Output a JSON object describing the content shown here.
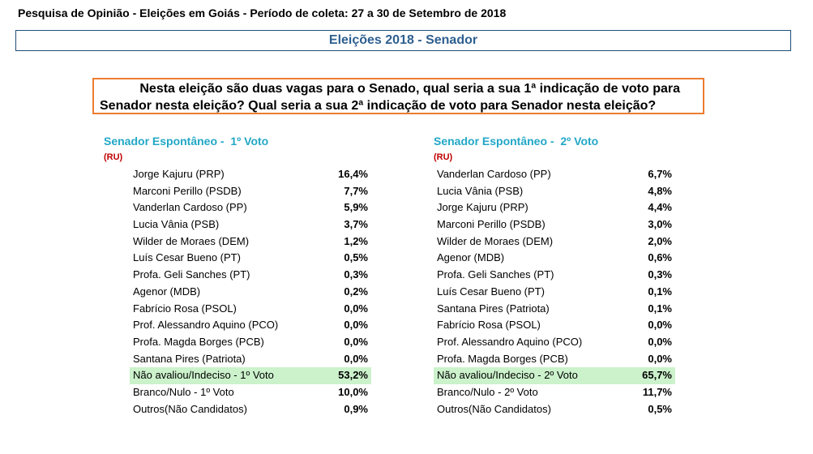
{
  "header": {
    "title": "Pesquisa de Opinião - Eleições em Goiás - Período de coleta: 27 a 30 de Setembro de 2018"
  },
  "banner": {
    "title": "Eleições 2018 - Senador"
  },
  "question": {
    "line1": "Nesta eleição são duas vagas para o Senado, qual seria a sua 1ª indicação de voto para",
    "line2": "Senador nesta eleição? Qual seria a sua 2ª indicação de voto para Senador nesta eleição?"
  },
  "first_vote": {
    "title": "Senador Espontâneo -  1º Voto",
    "note": "(RU)",
    "rows": [
      {
        "name": "Jorge Kajuru (PRP)",
        "value": "16,4%"
      },
      {
        "name": "Marconi Perillo (PSDB)",
        "value": "7,7%"
      },
      {
        "name": "Vanderlan Cardoso (PP)",
        "value": "5,9%"
      },
      {
        "name": "Lucia Vânia (PSB)",
        "value": "3,7%"
      },
      {
        "name": "Wilder de Moraes (DEM)",
        "value": "1,2%"
      },
      {
        "name": "Luís Cesar Bueno (PT)",
        "value": "0,5%"
      },
      {
        "name": "Profa. Geli Sanches (PT)",
        "value": "0,3%"
      },
      {
        "name": "Agenor (MDB)",
        "value": "0,2%"
      },
      {
        "name": "Fabrício Rosa (PSOL)",
        "value": "0,0%"
      },
      {
        "name": "Prof. Alessandro Aquino (PCO)",
        "value": "0,0%"
      },
      {
        "name": "Profa. Magda Borges (PCB)",
        "value": "0,0%"
      },
      {
        "name": "Santana Pires (Patriota)",
        "value": "0,0%"
      },
      {
        "name": "Não avaliou/Indeciso - 1º Voto",
        "value": "53,2%"
      },
      {
        "name": "Branco/Nulo - 1º Voto",
        "value": "10,0%"
      },
      {
        "name": "Outros(Não Candidatos)",
        "value": "0,9%"
      }
    ]
  },
  "second_vote": {
    "title": "Senador Espontâneo -  2º Voto",
    "note": "(RU)",
    "rows": [
      {
        "name": "Vanderlan Cardoso (PP)",
        "value": "6,7%"
      },
      {
        "name": "Lucia Vânia (PSB)",
        "value": "4,8%"
      },
      {
        "name": "Jorge Kajuru (PRP)",
        "value": "4,4%"
      },
      {
        "name": "Marconi Perillo (PSDB)",
        "value": "3,0%"
      },
      {
        "name": "Wilder de Moraes (DEM)",
        "value": "2,0%"
      },
      {
        "name": "Agenor (MDB)",
        "value": "0,6%"
      },
      {
        "name": "Profa. Geli Sanches (PT)",
        "value": "0,3%"
      },
      {
        "name": "Luís Cesar Bueno (PT)",
        "value": "0,1%"
      },
      {
        "name": "Santana Pires (Patriota)",
        "value": "0,1%"
      },
      {
        "name": "Fabrício Rosa (PSOL)",
        "value": "0,0%"
      },
      {
        "name": "Prof. Alessandro Aquino (PCO)",
        "value": "0,0%"
      },
      {
        "name": "Profa. Magda Borges (PCB)",
        "value": "0,0%"
      },
      {
        "name": "Não avaliou/Indeciso - 2º Voto",
        "value": "65,7%"
      },
      {
        "name": "Branco/Nulo - 2º Voto",
        "value": "11,7%"
      },
      {
        "name": "Outros(Não Candidatos)",
        "value": "0,5%"
      }
    ]
  },
  "colors": {
    "banner_text": "#2e5f8f",
    "question_border": "#ed7d31",
    "block_title": "#22a7c6",
    "note": "#c00000",
    "highlight_row": "#ccf2cc"
  }
}
